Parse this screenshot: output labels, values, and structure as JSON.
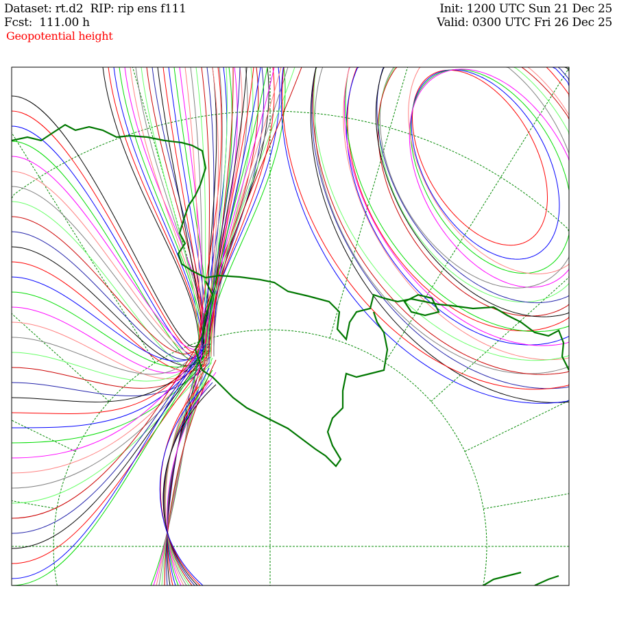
{
  "header": {
    "dataset": "Dataset: rt.d2  RIP: rip ens f111",
    "fcst": "Fcst:  111.00 h",
    "init": "Init: 1200 UTC Sun 21 Dec 25",
    "valid": "Valid: 0300 UTC Fri 26 Dec 25",
    "field": "Geopotential height"
  },
  "colors": {
    "frame": "#000000",
    "coast": "#007700",
    "grid": "#008800",
    "members": [
      "#000000",
      "#ff0000",
      "#0000ff",
      "#00dd00",
      "#ff00ff",
      "#ff8080",
      "#808080",
      "#66ff66",
      "#cc0000",
      "#2020aa"
    ]
  }
}
